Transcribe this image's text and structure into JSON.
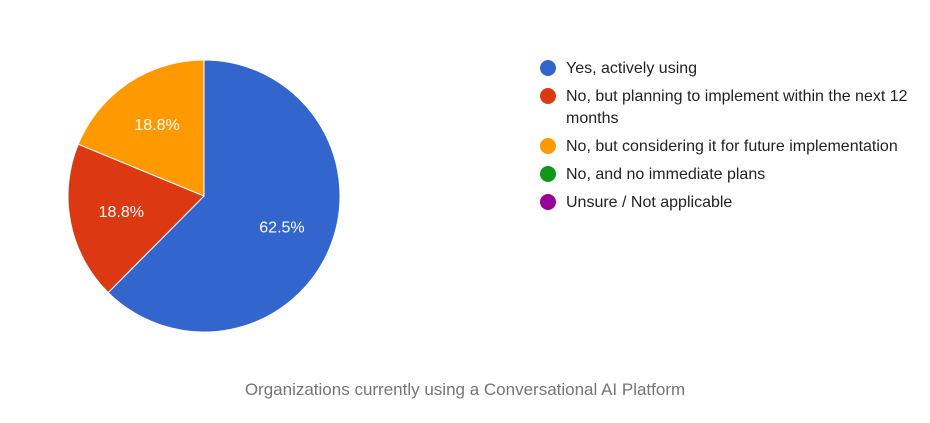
{
  "chart_data": {
    "type": "pie",
    "title": "Organizations currently using a Conversational AI Platform",
    "slices": [
      {
        "label": "Yes, actively using",
        "value": 62.5,
        "value_label": "62.5%",
        "color": "#3366cc"
      },
      {
        "label": "No, but planning to implement within the next 12 months",
        "value": 18.8,
        "value_label": "18.8%",
        "color": "#dc3912"
      },
      {
        "label": "No, but considering it for future implementation",
        "value": 18.8,
        "value_label": "18.8%",
        "color": "#ff9900"
      },
      {
        "label": "No, and no immediate plans",
        "value": 0,
        "value_label": "",
        "color": "#109618"
      },
      {
        "label": "Unsure / Not applicable",
        "value": 0,
        "value_label": "",
        "color": "#990099"
      }
    ],
    "legend_position": "right"
  }
}
